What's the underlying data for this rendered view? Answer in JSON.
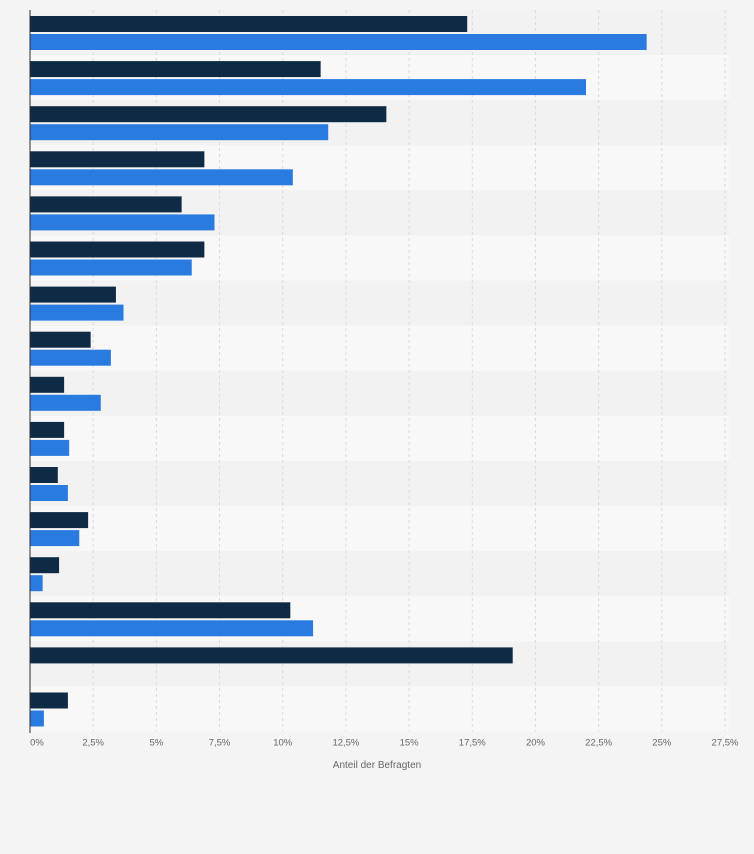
{
  "chart_data": {
    "type": "bar",
    "orientation": "horizontal",
    "categories": [
      "",
      "",
      "",
      "",
      "",
      "",
      "",
      "",
      "",
      "",
      "",
      "",
      "",
      "",
      "",
      ""
    ],
    "series": [
      {
        "color": "#0f2a45",
        "values": [
          17.3,
          11.5,
          14.1,
          6.9,
          6.0,
          6.9,
          3.4,
          2.4,
          1.35,
          1.35,
          1.1,
          2.3,
          1.15,
          10.3,
          19.1,
          1.5
        ]
      },
      {
        "color": "#2a7be0",
        "values": [
          24.4,
          22.0,
          11.8,
          10.4,
          7.3,
          6.4,
          3.7,
          3.2,
          2.8,
          1.55,
          1.5,
          1.95,
          0.5,
          11.2,
          null,
          0.55
        ]
      }
    ],
    "xlabel": "Anteil der Befragten",
    "xlim": [
      0,
      27.5
    ],
    "xticks": [
      0,
      2.5,
      5,
      7.5,
      10,
      12.5,
      15,
      17.5,
      20,
      22.5,
      25,
      27.5
    ],
    "xtick_labels": [
      "0%",
      "2,5%",
      "5%",
      "7,5%",
      "10%",
      "12,5%",
      "15%",
      "17,5%",
      "20%",
      "22,5%",
      "25%",
      "27,5%"
    ],
    "grid": true,
    "legend": "none"
  }
}
